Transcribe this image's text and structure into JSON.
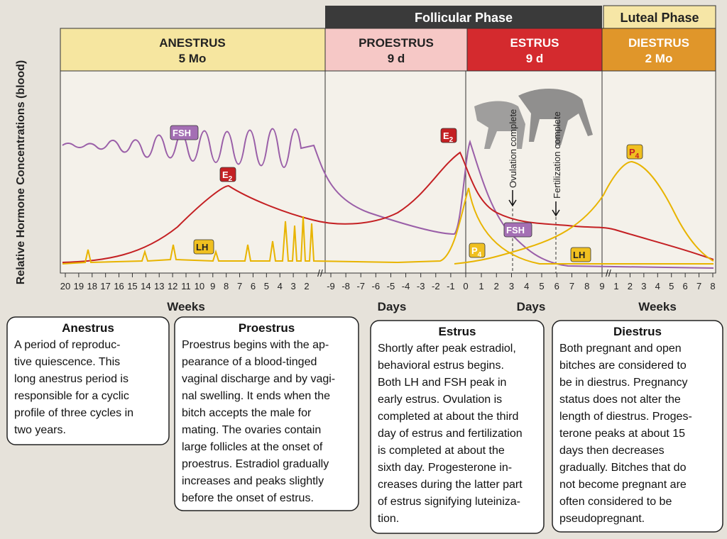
{
  "header": {
    "follicular": "Follicular Phase",
    "luteal": "Luteal Phase"
  },
  "phases": [
    {
      "name": "ANESTRUS",
      "duration": "5 Mo"
    },
    {
      "name": "PROESTRUS",
      "duration": "9 d"
    },
    {
      "name": "ESTRUS",
      "duration": "9 d"
    },
    {
      "name": "DIESTRUS",
      "duration": "2 Mo"
    }
  ],
  "y_axis_title": "Relative Hormone Concentrations (blood)",
  "hormone_labels": [
    {
      "base": "FSH"
    },
    {
      "base": "E",
      "sub": "2"
    },
    {
      "base": "LH"
    },
    {
      "base": "E",
      "sub": "2"
    },
    {
      "base": "P",
      "sub": "4"
    },
    {
      "base": "FSH"
    },
    {
      "base": "LH"
    },
    {
      "base": "P",
      "sub": "4"
    }
  ],
  "annotations": [
    "Ovulation complete",
    "Fertilization complete"
  ],
  "x_axis": [
    {
      "title": "Weeks",
      "ticks": [
        "20",
        "19",
        "18",
        "17",
        "16",
        "15",
        "14",
        "13",
        "12",
        "11",
        "10",
        "9",
        "8",
        "7",
        "6",
        "5",
        "4",
        "3",
        "2"
      ]
    },
    {
      "title": "Days",
      "ticks": [
        "-9",
        "-8",
        "-7",
        "-6",
        "-5",
        "-4",
        "-3",
        "-2",
        "-1",
        "0"
      ]
    },
    {
      "title": "Days",
      "ticks": [
        "1",
        "2",
        "3",
        "4",
        "5",
        "6",
        "7",
        "8",
        "9"
      ]
    },
    {
      "title": "Weeks",
      "ticks": [
        "1",
        "2",
        "3",
        "4",
        "5",
        "6",
        "7",
        "8"
      ]
    }
  ],
  "boxes": [
    {
      "title": "Anestrus",
      "lines": [
        "A period of reproduc-",
        "tive quiescence. This",
        "long anestrus period is",
        "responsible for a cyclic",
        "profile of three cycles in",
        "two years."
      ]
    },
    {
      "title": "Proestrus",
      "lines": [
        "Proestrus begins with the ap-",
        "pearance of a blood-tinged",
        "vaginal discharge and by vagi-",
        "nal swelling. It ends when the",
        "bitch accepts the male for",
        "mating. The ovaries contain",
        "large follicles at the onset of",
        "proestrus. Estradiol gradually",
        "increases and peaks slightly",
        "before the onset of estrus."
      ]
    },
    {
      "title": "Estrus",
      "lines": [
        "Shortly after peak estradiol,",
        "behavioral estrus begins.",
        "Both LH and FSH peak in",
        "early estrus. Ovulation is",
        "completed at about the third",
        "day of estrus and fertilization",
        "is completed at about the",
        "sixth day. Progesterone in-",
        "creases during the latter part",
        "of estrus signifying luteiniza-",
        "tion."
      ]
    },
    {
      "title": "Diestrus",
      "lines": [
        "Both pregnant and open",
        "bitches are considered to",
        "be in diestrus. Pregnancy",
        "status does not alter the",
        "length of diestrus. Proges-",
        "terone peaks at about 15",
        "days then decreases",
        "gradually. Bitches that do",
        "not become pregnant are",
        "often considered to be",
        "pseudopregnant."
      ]
    }
  ]
}
